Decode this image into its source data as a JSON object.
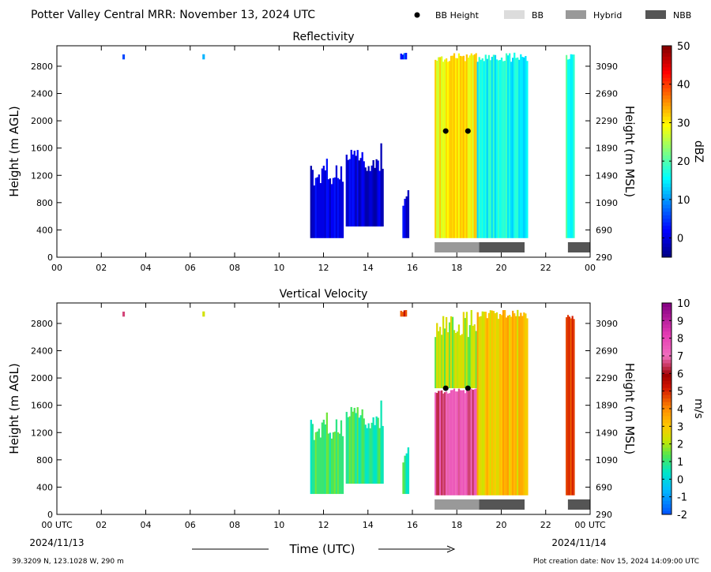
{
  "header": {
    "title": "Potter Valley Central MRR:  November 13, 2024 UTC",
    "legend": [
      {
        "label": "BB Height",
        "kind": "dot",
        "color": "#000000"
      },
      {
        "label": "BB",
        "kind": "swatch",
        "color": "#dcdcdc"
      },
      {
        "label": "Hybrid",
        "kind": "swatch",
        "color": "#999999"
      },
      {
        "label": "NBB",
        "kind": "swatch",
        "color": "#555555"
      }
    ]
  },
  "footer": {
    "coords": "39.3209 N, 123.1028 W, 290 m",
    "created": "Plot creation date: Nov 15, 2024 14:09:00 UTC",
    "xlabel": "Time (UTC)",
    "date_left": "2024/11/13",
    "date_right": "2024/11/14"
  },
  "chart_data": [
    {
      "type": "heatmap",
      "title": "Reflectivity",
      "xlabel": "",
      "ylabel": "Height (m AGL)",
      "ylabel_right": "Height (m MSL)",
      "xlim": [
        0,
        24
      ],
      "ylim": [
        0,
        3100
      ],
      "x_ticks": [
        "00",
        "02",
        "04",
        "06",
        "08",
        "10",
        "12",
        "14",
        "16",
        "18",
        "20",
        "22",
        "00"
      ],
      "y_ticks": [
        0,
        400,
        800,
        1200,
        1600,
        2000,
        2400,
        2800
      ],
      "y_ticks_right": [
        290,
        690,
        1090,
        1490,
        1890,
        2290,
        2690,
        3090
      ],
      "colorbar": {
        "label": "dBZ",
        "min": -5,
        "max": 50,
        "ticks": [
          0,
          10,
          20,
          30,
          40,
          50
        ],
        "colormap": "jet"
      },
      "bb_height": [
        {
          "time": 17.5,
          "height": 1850
        },
        {
          "time": 18.5,
          "height": 1850
        }
      ],
      "bb_bars": [
        {
          "start": 17.0,
          "end": 19.0,
          "class": "Hybrid"
        },
        {
          "start": 19.0,
          "end": 21.05,
          "class": "NBB"
        },
        {
          "start": 23.0,
          "end": 24.0,
          "class": "NBB"
        }
      ],
      "echo_regions": [
        {
          "start": 2.95,
          "end": 3.05,
          "bottom": 2900,
          "top": 3000,
          "value": 3
        },
        {
          "start": 6.55,
          "end": 6.65,
          "bottom": 2900,
          "top": 2980,
          "value": 10
        },
        {
          "start": 11.4,
          "end": 12.9,
          "bottom": 280,
          "top": 1450,
          "value": 0
        },
        {
          "start": 13.0,
          "end": 14.7,
          "bottom": 450,
          "top": 1680,
          "value": 0
        },
        {
          "start": 15.55,
          "end": 15.85,
          "bottom": 280,
          "top": 1000,
          "value": 1
        },
        {
          "start": 15.45,
          "end": 15.75,
          "bottom": 2900,
          "top": 3000,
          "value": 5
        },
        {
          "start": 17.0,
          "end": 18.9,
          "bottom": 280,
          "top": 3000,
          "value": 30
        },
        {
          "start": 18.9,
          "end": 21.2,
          "bottom": 280,
          "top": 3000,
          "value": 16
        },
        {
          "start": 22.9,
          "end": 23.3,
          "bottom": 280,
          "top": 3000,
          "value": 18
        }
      ]
    },
    {
      "type": "heatmap",
      "title": "Vertical Velocity",
      "xlabel": "Time (UTC)",
      "ylabel": "Height (m AGL)",
      "ylabel_right": "Height (m MSL)",
      "xlim": [
        0,
        24
      ],
      "ylim": [
        0,
        3100
      ],
      "x_ticks": [
        "00 UTC",
        "02",
        "04",
        "06",
        "08",
        "10",
        "12",
        "14",
        "16",
        "18",
        "20",
        "22",
        "00 UTC"
      ],
      "y_ticks": [
        0,
        400,
        800,
        1200,
        1600,
        2000,
        2400,
        2800
      ],
      "y_ticks_right": [
        290,
        690,
        1090,
        1490,
        1890,
        2290,
        2690,
        3090
      ],
      "colorbar": {
        "label": "m/s",
        "min": -2,
        "max": 10,
        "ticks": [
          -2,
          -1,
          0,
          1,
          2,
          3,
          4,
          5,
          6,
          7,
          8,
          9,
          10
        ],
        "colormap": "velocity"
      },
      "bb_height": [
        {
          "time": 17.5,
          "height": 1850
        },
        {
          "time": 18.5,
          "height": 1850
        }
      ],
      "bb_bars": [
        {
          "start": 17.0,
          "end": 19.0,
          "class": "Hybrid"
        },
        {
          "start": 19.0,
          "end": 21.05,
          "class": "NBB"
        },
        {
          "start": 23.0,
          "end": 24.0,
          "class": "NBB"
        }
      ],
      "echo_regions": [
        {
          "start": 2.95,
          "end": 3.05,
          "bottom": 2900,
          "top": 3000,
          "value": 6
        },
        {
          "start": 6.55,
          "end": 6.65,
          "bottom": 2900,
          "top": 2980,
          "value": 2
        },
        {
          "start": 11.4,
          "end": 12.9,
          "bottom": 300,
          "top": 1500,
          "value": 1
        },
        {
          "start": 13.0,
          "end": 14.7,
          "bottom": 450,
          "top": 1680,
          "value": 1
        },
        {
          "start": 15.55,
          "end": 15.85,
          "bottom": 300,
          "top": 1000,
          "value": 1
        },
        {
          "start": 15.45,
          "end": 15.75,
          "bottom": 2900,
          "top": 3000,
          "value": 5
        },
        {
          "start": 17.0,
          "end": 18.9,
          "bottom": 280,
          "top": 1850,
          "value": 7
        },
        {
          "start": 17.0,
          "end": 18.9,
          "bottom": 1850,
          "top": 3000,
          "value": 2
        },
        {
          "start": 18.9,
          "end": 21.2,
          "bottom": 280,
          "top": 3000,
          "value": 3
        },
        {
          "start": 22.9,
          "end": 23.3,
          "bottom": 280,
          "top": 3000,
          "value": 5
        }
      ]
    }
  ]
}
